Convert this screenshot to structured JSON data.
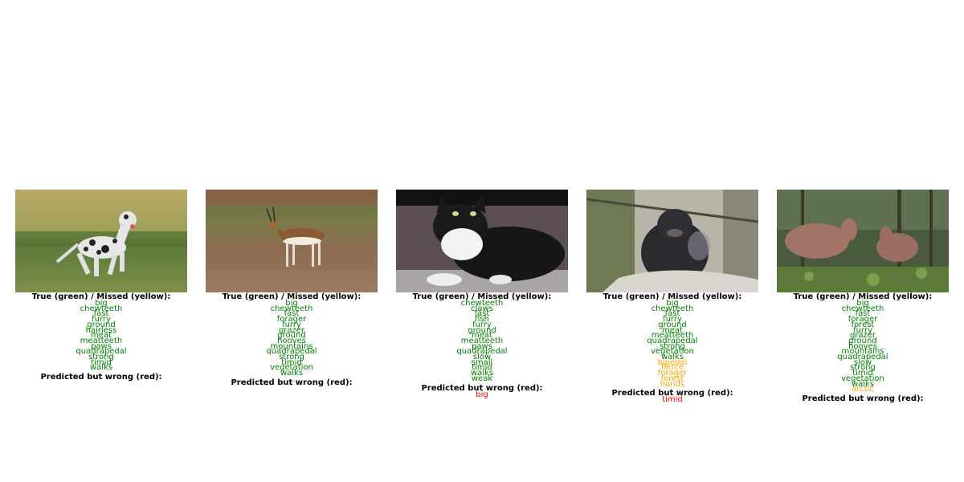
{
  "panels": [
    {
      "subject": "dalmatian",
      "true_header": "True (green) / Missed (yellow):",
      "true_items": [
        {
          "text": "big",
          "status": "green"
        },
        {
          "text": "chewteeth",
          "status": "green"
        },
        {
          "text": "fast",
          "status": "green"
        },
        {
          "text": "furry",
          "status": "green"
        },
        {
          "text": "ground",
          "status": "green"
        },
        {
          "text": "hairless",
          "status": "green"
        },
        {
          "text": "meat",
          "status": "green"
        },
        {
          "text": "meatteeth",
          "status": "green"
        },
        {
          "text": "paws",
          "status": "green"
        },
        {
          "text": "quadrapedal",
          "status": "green"
        },
        {
          "text": "strong",
          "status": "green"
        },
        {
          "text": "timid",
          "status": "green"
        },
        {
          "text": "walks",
          "status": "green"
        }
      ],
      "wrong_header": "Predicted but wrong (red):",
      "wrong_items": []
    },
    {
      "subject": "antelope",
      "true_header": "True (green) / Missed (yellow):",
      "true_items": [
        {
          "text": "big",
          "status": "green"
        },
        {
          "text": "chewteeth",
          "status": "green"
        },
        {
          "text": "fast",
          "status": "green"
        },
        {
          "text": "forager",
          "status": "green"
        },
        {
          "text": "furry",
          "status": "green"
        },
        {
          "text": "grazer",
          "status": "green"
        },
        {
          "text": "ground",
          "status": "green"
        },
        {
          "text": "hooves",
          "status": "green"
        },
        {
          "text": "mountains",
          "status": "green"
        },
        {
          "text": "quadrapedal",
          "status": "green"
        },
        {
          "text": "strong",
          "status": "green"
        },
        {
          "text": "timid",
          "status": "green"
        },
        {
          "text": "vegetation",
          "status": "green"
        },
        {
          "text": "walks",
          "status": "green"
        }
      ],
      "wrong_header": "Predicted but wrong (red):",
      "wrong_items": []
    },
    {
      "subject": "cat",
      "true_header": "True (green) / Missed (yellow):",
      "true_items": [
        {
          "text": "chewteeth",
          "status": "green"
        },
        {
          "text": "claws",
          "status": "green"
        },
        {
          "text": "fast",
          "status": "green"
        },
        {
          "text": "fish",
          "status": "green"
        },
        {
          "text": "furry",
          "status": "green"
        },
        {
          "text": "ground",
          "status": "green"
        },
        {
          "text": "meat",
          "status": "green"
        },
        {
          "text": "meatteeth",
          "status": "green"
        },
        {
          "text": "paws",
          "status": "green"
        },
        {
          "text": "quadrapedal",
          "status": "green"
        },
        {
          "text": "slow",
          "status": "green"
        },
        {
          "text": "small",
          "status": "green"
        },
        {
          "text": "timid",
          "status": "green"
        },
        {
          "text": "walks",
          "status": "green"
        },
        {
          "text": "weak",
          "status": "green"
        }
      ],
      "wrong_header": "Predicted but wrong (red):",
      "wrong_items": [
        {
          "text": "big",
          "status": "red"
        }
      ]
    },
    {
      "subject": "gorilla",
      "true_header": "True (green) / Missed (yellow):",
      "true_items": [
        {
          "text": "big",
          "status": "green"
        },
        {
          "text": "chewteeth",
          "status": "green"
        },
        {
          "text": "fast",
          "status": "green"
        },
        {
          "text": "furry",
          "status": "green"
        },
        {
          "text": "ground",
          "status": "green"
        },
        {
          "text": "meat",
          "status": "green"
        },
        {
          "text": "meatteeth",
          "status": "green"
        },
        {
          "text": "quadrapedal",
          "status": "green"
        },
        {
          "text": "strong",
          "status": "green"
        },
        {
          "text": "vegetation",
          "status": "green"
        },
        {
          "text": "walks",
          "status": "green"
        },
        {
          "text": "bipedal",
          "status": "yellow"
        },
        {
          "text": "fierce",
          "status": "yellow"
        },
        {
          "text": "forager",
          "status": "yellow"
        },
        {
          "text": "forest",
          "status": "yellow"
        },
        {
          "text": "hands",
          "status": "yellow"
        }
      ],
      "wrong_header": "Predicted but wrong (red):",
      "wrong_items": [
        {
          "text": "timid",
          "status": "red"
        }
      ]
    },
    {
      "subject": "moose",
      "true_header": "True (green) / Missed (yellow):",
      "true_items": [
        {
          "text": "big",
          "status": "green"
        },
        {
          "text": "chewteeth",
          "status": "green"
        },
        {
          "text": "fast",
          "status": "green"
        },
        {
          "text": "forager",
          "status": "green"
        },
        {
          "text": "forest",
          "status": "green"
        },
        {
          "text": "furry",
          "status": "green"
        },
        {
          "text": "grazer",
          "status": "green"
        },
        {
          "text": "ground",
          "status": "green"
        },
        {
          "text": "hooves",
          "status": "green"
        },
        {
          "text": "mountains",
          "status": "green"
        },
        {
          "text": "quadrapedal",
          "status": "green"
        },
        {
          "text": "slow",
          "status": "green"
        },
        {
          "text": "strong",
          "status": "green"
        },
        {
          "text": "timid",
          "status": "green"
        },
        {
          "text": "vegetation",
          "status": "green"
        },
        {
          "text": "walks",
          "status": "green"
        },
        {
          "text": "arctic",
          "status": "yellow"
        }
      ],
      "wrong_header": "Predicted but wrong (red):",
      "wrong_items": []
    }
  ]
}
